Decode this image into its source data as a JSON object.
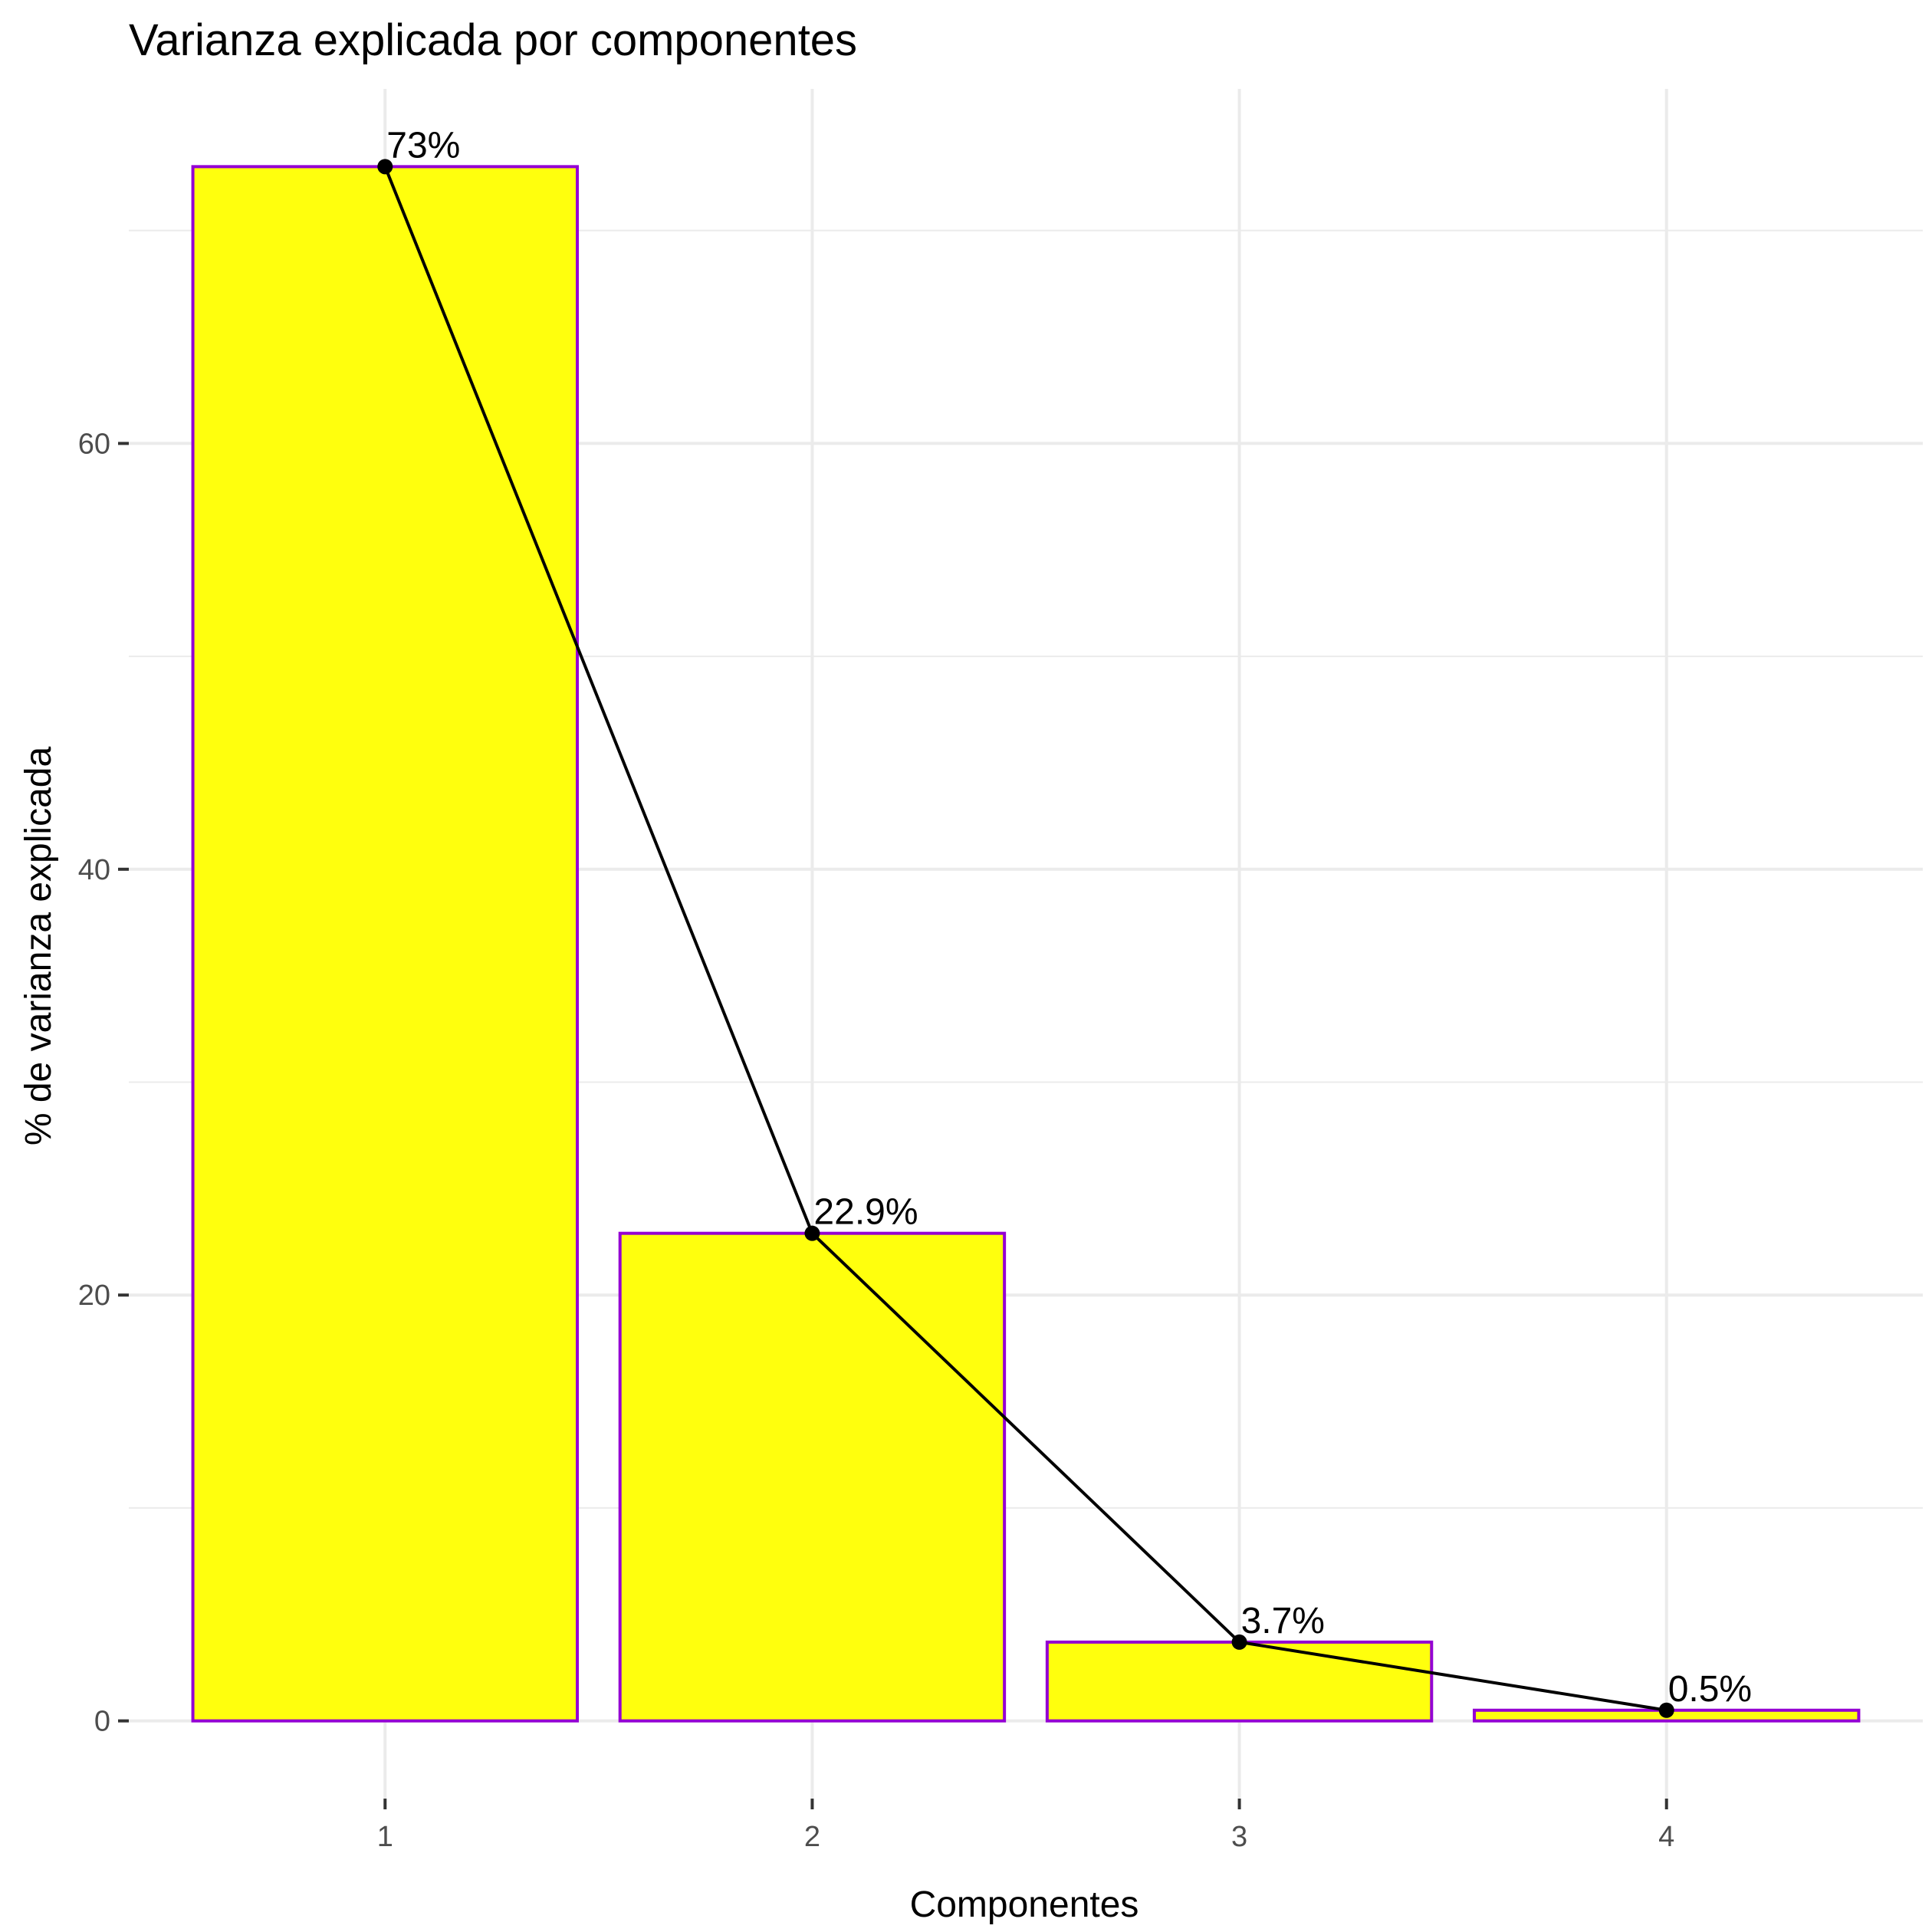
{
  "chart_data": {
    "type": "bar",
    "title": "Varianza explicada por componentes",
    "xlabel": "Componentes",
    "ylabel": "% de varianza explicada",
    "categories": [
      "1",
      "2",
      "3",
      "4"
    ],
    "values": [
      73.0,
      22.9,
      3.7,
      0.5
    ],
    "data_labels": [
      "73%",
      "22.9%",
      "3.7%",
      "0.5%"
    ],
    "y_ticks": [
      0,
      20,
      40,
      60
    ],
    "y_tick_labels": [
      "0",
      "20",
      "40",
      "60"
    ],
    "ylim": [
      -3.65,
      76.65
    ],
    "grid": true,
    "line_overlay": true,
    "colors": {
      "bar_fill": "#FFFF0D",
      "bar_border": "#9400D3",
      "line": "#000000",
      "grid": "#EBEBEB",
      "tick_label": "#4D4D4D"
    }
  }
}
